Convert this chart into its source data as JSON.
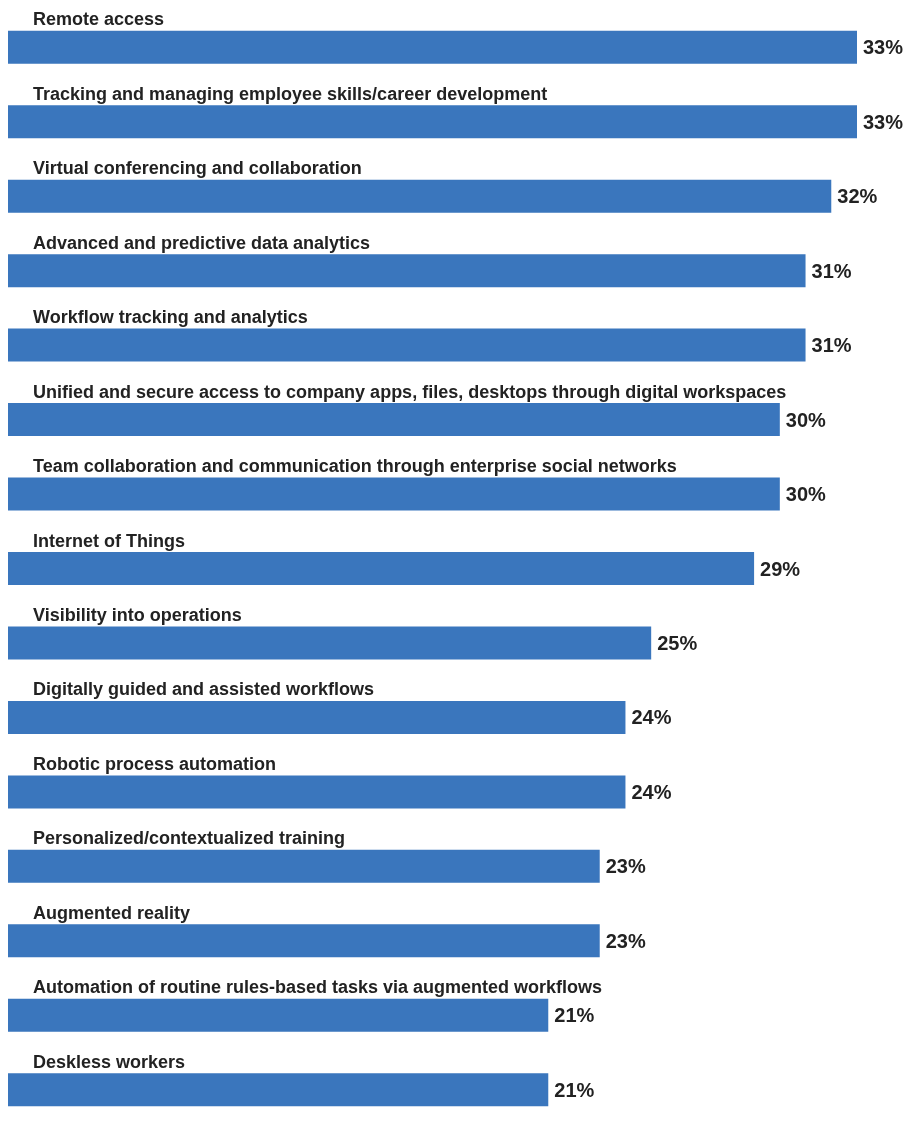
{
  "chart_data": {
    "type": "bar",
    "orientation": "horizontal",
    "tick_labels": "y",
    "categories": [
      "Remote access",
      "Tracking and managing employee skills/career development",
      "Virtual conferencing and collaboration",
      "Advanced and predictive data analytics",
      "Workflow tracking and analytics",
      "Unified and secure access to company apps, files, desktops through digital workspaces",
      "Team collaboration and communication through enterprise social networks",
      "Internet of Things",
      "Visibility into operations",
      "Digitally guided and assisted workflows",
      "Robotic process automation",
      "Personalized/contextualized training",
      "Augmented reality",
      "Automation of routine rules-based tasks via augmented workflows",
      "Deskless workers"
    ],
    "values": [
      33,
      33,
      32,
      31,
      31,
      30,
      30,
      29,
      25,
      24,
      24,
      23,
      23,
      21,
      21
    ],
    "value_labels": [
      "33%",
      "33%",
      "32%",
      "31%",
      "31%",
      "30%",
      "30%",
      "29%",
      "25%",
      "24%",
      "24%",
      "23%",
      "23%",
      "21%",
      "21%"
    ],
    "color": "#3a76bd"
  }
}
